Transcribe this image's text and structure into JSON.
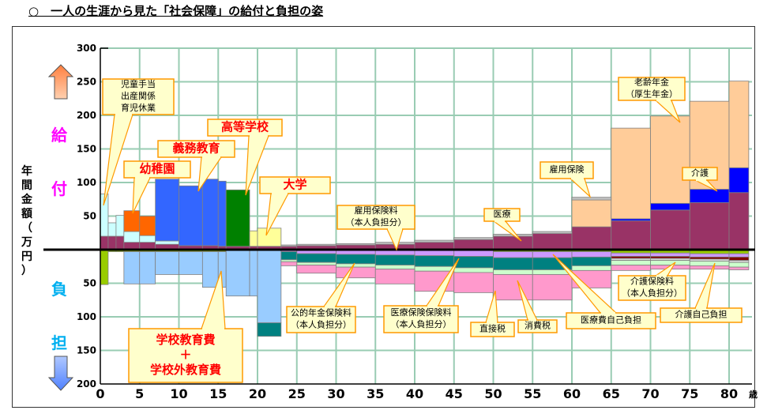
{
  "title": "○　一人の生涯から見た「社会保障」の給付と負担の姿",
  "side_labels": {
    "benefit_1": "給",
    "benefit_2": "付",
    "burden_1": "負",
    "burden_2": "担",
    "ylabel": [
      "年",
      "間",
      "金",
      "額",
      "（",
      "万",
      "円",
      "）"
    ]
  },
  "colors": {
    "grid": "#99ccb3",
    "callout_fill": "#ffffcc",
    "callout_border": "#ff9900",
    "benefit_text": "#ff00ff",
    "burden_text": "#00b0f0",
    "up_arrow": "#ff7f3f",
    "down_arrow": "#4f81ff"
  },
  "chart_data": {
    "type": "area",
    "subtype": "stacked step (benefits above axis, burdens below axis)",
    "xlabel_unit": "歳",
    "x_ticks": [
      "0",
      "5",
      "10",
      "15",
      "20",
      "25",
      "30",
      "35",
      "40",
      "45",
      "50",
      "55",
      "60",
      "65",
      "70",
      "75",
      "80"
    ],
    "y_ticks_benefit": [
      "300",
      "250",
      "200",
      "150",
      "100",
      "50"
    ],
    "y_ticks_burden": [
      "50",
      "100",
      "150",
      "200"
    ],
    "xlim": [
      0,
      83
    ],
    "ylim_benefit": [
      0,
      300
    ],
    "ylim_burden": [
      0,
      200
    ],
    "grid": true,
    "age_edges": [
      0,
      1,
      2,
      3,
      5,
      7,
      10,
      13,
      15,
      16,
      19,
      20,
      23,
      25,
      30,
      35,
      40,
      45,
      50,
      55,
      60,
      65,
      70,
      75,
      80,
      82.5
    ],
    "benefit_series": [
      {
        "name": "医療",
        "color": "#993366",
        "values": [
          20,
          20,
          20,
          11,
          11,
          8,
          6,
          6,
          5,
          5,
          5,
          5,
          5,
          6,
          7,
          8,
          11,
          15,
          20,
          24,
          34,
          43,
          59,
          70,
          85
        ]
      },
      {
        "name": "介護",
        "color": "#0000ff",
        "values": [
          0,
          0,
          0,
          0,
          0,
          0,
          0,
          0,
          0,
          0,
          0,
          0,
          0,
          0,
          0,
          0,
          0,
          0,
          0,
          0,
          0,
          3,
          10,
          20,
          37
        ]
      },
      {
        "name": "児童手当・出産関係・育児休業",
        "color": "#ccffff",
        "values": [
          63,
          20,
          31,
          16,
          10,
          5,
          0,
          0,
          0,
          0,
          0,
          0,
          0,
          0,
          0,
          0,
          0,
          0,
          0,
          0,
          0,
          0,
          0,
          0,
          0
        ]
      },
      {
        "name": "幼稚園",
        "color": "#ff6600",
        "values": [
          0,
          0,
          0,
          31,
          29,
          0,
          0,
          0,
          0,
          0,
          0,
          0,
          0,
          0,
          0,
          0,
          0,
          0,
          0,
          0,
          0,
          0,
          0,
          0,
          0
        ]
      },
      {
        "name": "義務教育",
        "color": "#3366ff",
        "values": [
          0,
          0,
          0,
          0,
          0,
          92,
          89,
          99,
          97,
          0,
          0,
          0,
          0,
          0,
          0,
          0,
          0,
          0,
          0,
          0,
          0,
          0,
          0,
          0,
          0
        ]
      },
      {
        "name": "高等学校",
        "color": "#008000",
        "values": [
          0,
          0,
          0,
          0,
          0,
          0,
          0,
          0,
          0,
          84,
          0,
          0,
          0,
          0,
          0,
          0,
          0,
          0,
          0,
          0,
          0,
          0,
          0,
          0,
          0
        ]
      },
      {
        "name": "大学",
        "color": "#ffff99",
        "values": [
          0,
          0,
          0,
          0,
          0,
          0,
          0,
          0,
          0,
          0,
          23,
          27,
          0,
          0,
          0,
          0,
          0,
          0,
          0,
          0,
          0,
          0,
          0,
          0,
          0
        ]
      },
      {
        "name": "老齢年金（厚生年金）",
        "color": "#ffcc99",
        "values": [
          0,
          0,
          0,
          0,
          0,
          0,
          0,
          0,
          0,
          0,
          0,
          0,
          0,
          0,
          0,
          0,
          0,
          0,
          0,
          0,
          40,
          135,
          130,
          131,
          129
        ]
      },
      {
        "name": "雇用保険",
        "color": "#c0c0c0",
        "values": [
          0,
          0,
          0,
          0,
          0,
          0,
          0,
          0,
          0,
          0,
          0,
          0,
          2,
          2,
          2,
          3,
          3,
          3,
          3,
          3,
          4,
          0,
          0,
          0,
          0
        ]
      }
    ],
    "burden_series": [
      {
        "name": "医療費自己負担",
        "color": "#99cc00",
        "values": [
          52,
          3,
          3,
          3,
          3,
          3,
          3,
          3,
          3,
          1,
          1,
          1,
          1,
          1,
          1,
          1,
          1,
          1,
          3,
          3,
          3,
          5,
          5,
          6,
          6
        ]
      },
      {
        "name": "医療保険保険料（本人負担分）",
        "color": "#cc99ff",
        "values": [
          0,
          0,
          0,
          0,
          0,
          0,
          0,
          0,
          0,
          0,
          0,
          0,
          2,
          5,
          6,
          7,
          8,
          9,
          9,
          9,
          8,
          5,
          5,
          5,
          5
        ]
      },
      {
        "name": "介護保険料（本人負担分）",
        "color": "#800000",
        "values": [
          0,
          0,
          0,
          0,
          0,
          0,
          0,
          0,
          0,
          0,
          0,
          0,
          0,
          0,
          0,
          0,
          0,
          0,
          0,
          0,
          0,
          3,
          3,
          3,
          5
        ]
      },
      {
        "name": "介護自己負担",
        "color": "#d9d9d9",
        "values": [
          0,
          0,
          0,
          0,
          0,
          0,
          0,
          0,
          0,
          0,
          0,
          0,
          0,
          0,
          0,
          0,
          0,
          0,
          0,
          0,
          0,
          3,
          3,
          3,
          3
        ]
      },
      {
        "name": "学校教育費＋学校外教育費",
        "color": "#99ccff",
        "values": [
          0,
          0,
          0,
          48,
          48,
          34,
          34,
          53,
          53,
          68,
          68,
          108,
          0,
          0,
          0,
          0,
          0,
          0,
          0,
          0,
          0,
          0,
          0,
          0,
          0
        ]
      },
      {
        "name": "公的年金保険料（本人負担分）",
        "color": "#008080",
        "values": [
          0,
          0,
          0,
          0,
          0,
          0,
          0,
          0,
          0,
          0,
          0,
          20,
          12,
          13,
          14,
          15,
          16,
          17,
          18,
          18,
          13,
          0,
          0,
          0,
          0
        ]
      },
      {
        "name": "消費税",
        "color": "#ccffcc",
        "values": [
          0,
          0,
          0,
          0,
          0,
          0,
          0,
          0,
          0,
          0,
          0,
          0,
          3,
          4,
          5,
          6,
          7,
          7,
          7,
          7,
          7,
          7,
          7,
          7,
          7
        ]
      },
      {
        "name": "直接税",
        "color": "#ff99cc",
        "values": [
          0,
          0,
          0,
          0,
          0,
          0,
          0,
          0,
          0,
          0,
          0,
          0,
          6,
          12,
          16,
          22,
          30,
          30,
          38,
          38,
          26,
          8,
          6,
          5,
          4
        ]
      }
    ],
    "annotations": [
      {
        "lines": [
          "児童手当",
          "出産関係",
          "育児休業"
        ]
      },
      {
        "lines": [
          "幼稚園"
        ]
      },
      {
        "lines": [
          "義務教育"
        ]
      },
      {
        "lines": [
          "高等学校"
        ]
      },
      {
        "lines": [
          "大学"
        ]
      },
      {
        "lines": [
          "雇用保険料",
          "（本人負担分）"
        ]
      },
      {
        "lines": [
          "医療"
        ]
      },
      {
        "lines": [
          "雇用保険"
        ]
      },
      {
        "lines": [
          "老齢年金",
          "（厚生年金）"
        ]
      },
      {
        "lines": [
          "介護"
        ]
      },
      {
        "lines": [
          "学校教育費",
          "＋",
          "学校外教育費"
        ]
      },
      {
        "lines": [
          "公的年金保険料",
          "（本人負担分）"
        ]
      },
      {
        "lines": [
          "医療保険保険料",
          "（本人負担分）"
        ]
      },
      {
        "lines": [
          "直接税"
        ]
      },
      {
        "lines": [
          "消費税"
        ]
      },
      {
        "lines": [
          "医療費自己負担"
        ]
      },
      {
        "lines": [
          "介護保険料",
          "（本人負担分）"
        ]
      },
      {
        "lines": [
          "介護自己負担"
        ]
      }
    ]
  }
}
